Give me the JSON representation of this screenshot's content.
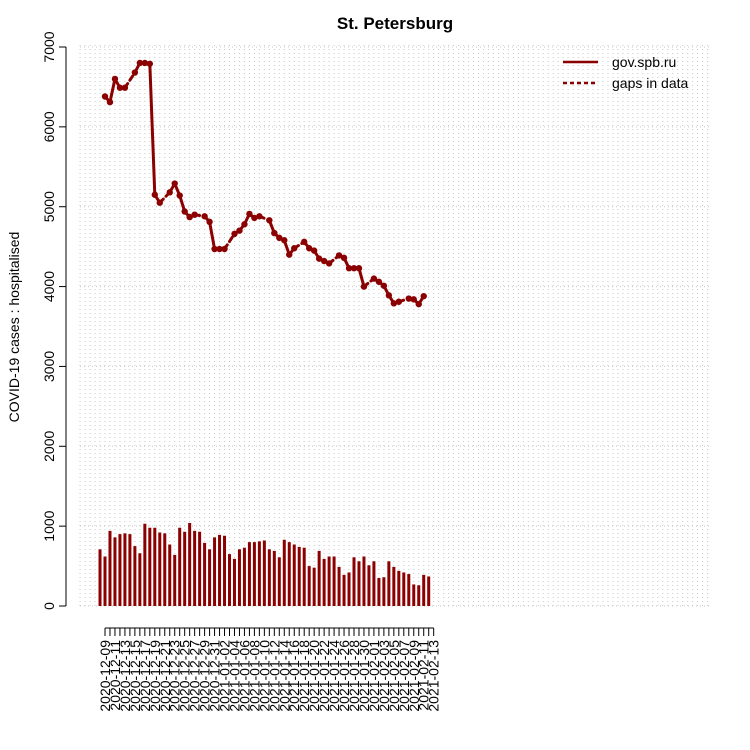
{
  "chart_data": {
    "type": "line",
    "title": "St. Petersburg",
    "xlabel": "",
    "ylabel": "COVID-19 cases : hospitalised",
    "ylim": [
      0,
      7000
    ],
    "yticks": [
      0,
      1000,
      2000,
      3000,
      4000,
      5000,
      6000,
      7000
    ],
    "grid": true,
    "legend_position": "top-right",
    "colors": {
      "series": "#8b0000",
      "grid": "#c8c8c8",
      "axis": "#000000"
    },
    "x_tick_labels": [
      "2020-12-09",
      "2020-12-11",
      "2020-12-13",
      "2020-12-15",
      "2020-12-17",
      "2020-12-19",
      "2020-12-21",
      "2020-12-23",
      "2020-12-25",
      "2020-12-27",
      "2020-12-29",
      "2020-12-31",
      "2021-01-02",
      "2021-01-04",
      "2021-01-06",
      "2021-01-08",
      "2021-01-10",
      "2021-01-12",
      "2021-01-14",
      "2021-01-16",
      "2021-01-18",
      "2021-01-20",
      "2021-01-22",
      "2021-01-24",
      "2021-01-26",
      "2021-01-28",
      "2021-01-30",
      "2021-02-01",
      "2021-02-03",
      "2021-02-05",
      "2021-02-07",
      "2021-02-09",
      "2021-02-11",
      "2021-02-13"
    ],
    "legend": [
      {
        "label": "gov.spb.ru",
        "style": "solid"
      },
      {
        "label": "gaps in data",
        "style": "dashed"
      }
    ],
    "series": [
      {
        "name": "gov.spb.ru",
        "kind": "line",
        "points": [
          [
            "2020-12-09",
            6380
          ],
          [
            "2020-12-10",
            6310
          ],
          [
            "2020-12-11",
            6600
          ],
          [
            "2020-12-12",
            6490
          ],
          [
            "2020-12-13",
            6490
          ],
          [
            "2020-12-15",
            6680
          ],
          [
            "2020-12-16",
            6800
          ],
          [
            "2020-12-17",
            6800
          ],
          [
            "2020-12-18",
            6790
          ],
          [
            "2020-12-19",
            5150
          ],
          [
            "2020-12-20",
            5050
          ],
          [
            "2020-12-22",
            5180
          ],
          [
            "2020-12-23",
            5290
          ],
          [
            "2020-12-24",
            5140
          ],
          [
            "2020-12-25",
            4940
          ],
          [
            "2020-12-26",
            4870
          ],
          [
            "2020-12-27",
            4900
          ],
          [
            "2020-12-29",
            4880
          ],
          [
            "2020-12-30",
            4810
          ],
          [
            "2020-12-31",
            4470
          ],
          [
            "2021-01-01",
            4470
          ],
          [
            "2021-01-02",
            4470
          ],
          [
            "2021-01-04",
            4660
          ],
          [
            "2021-01-05",
            4700
          ],
          [
            "2021-01-06",
            4780
          ],
          [
            "2021-01-07",
            4910
          ],
          [
            "2021-01-08",
            4860
          ],
          [
            "2021-01-09",
            4880
          ],
          [
            "2021-01-11",
            4830
          ],
          [
            "2021-01-12",
            4670
          ],
          [
            "2021-01-13",
            4610
          ],
          [
            "2021-01-14",
            4580
          ],
          [
            "2021-01-15",
            4400
          ],
          [
            "2021-01-16",
            4480
          ],
          [
            "2021-01-18",
            4560
          ],
          [
            "2021-01-19",
            4480
          ],
          [
            "2021-01-20",
            4450
          ],
          [
            "2021-01-21",
            4350
          ],
          [
            "2021-01-22",
            4320
          ],
          [
            "2021-01-23",
            4290
          ],
          [
            "2021-01-25",
            4390
          ],
          [
            "2021-01-26",
            4360
          ],
          [
            "2021-01-27",
            4230
          ],
          [
            "2021-01-28",
            4230
          ],
          [
            "2021-01-29",
            4230
          ],
          [
            "2021-01-30",
            4000
          ],
          [
            "2021-02-01",
            4100
          ],
          [
            "2021-02-02",
            4060
          ],
          [
            "2021-02-03",
            4010
          ],
          [
            "2021-02-04",
            3890
          ],
          [
            "2021-02-05",
            3790
          ],
          [
            "2021-02-06",
            3810
          ],
          [
            "2021-02-08",
            3850
          ],
          [
            "2021-02-09",
            3840
          ],
          [
            "2021-02-10",
            3780
          ],
          [
            "2021-02-11",
            3880
          ]
        ]
      },
      {
        "name": "gov.spb.ru",
        "kind": "bar",
        "points": [
          [
            "2020-12-08",
            710
          ],
          [
            "2020-12-09",
            620
          ],
          [
            "2020-12-10",
            940
          ],
          [
            "2020-12-11",
            860
          ],
          [
            "2020-12-12",
            900
          ],
          [
            "2020-12-13",
            910
          ],
          [
            "2020-12-14",
            900
          ],
          [
            "2020-12-15",
            750
          ],
          [
            "2020-12-16",
            660
          ],
          [
            "2020-12-17",
            1030
          ],
          [
            "2020-12-18",
            980
          ],
          [
            "2020-12-19",
            980
          ],
          [
            "2020-12-20",
            920
          ],
          [
            "2020-12-21",
            910
          ],
          [
            "2020-12-22",
            770
          ],
          [
            "2020-12-23",
            640
          ],
          [
            "2020-12-24",
            980
          ],
          [
            "2020-12-25",
            930
          ],
          [
            "2020-12-26",
            1040
          ],
          [
            "2020-12-27",
            940
          ],
          [
            "2020-12-28",
            930
          ],
          [
            "2020-12-29",
            790
          ],
          [
            "2020-12-30",
            710
          ],
          [
            "2020-12-31",
            860
          ],
          [
            "2021-01-01",
            890
          ],
          [
            "2021-01-02",
            880
          ],
          [
            "2021-01-03",
            650
          ],
          [
            "2021-01-04",
            590
          ],
          [
            "2021-01-05",
            710
          ],
          [
            "2021-01-06",
            730
          ],
          [
            "2021-01-07",
            800
          ],
          [
            "2021-01-08",
            800
          ],
          [
            "2021-01-09",
            810
          ],
          [
            "2021-01-10",
            820
          ],
          [
            "2021-01-11",
            710
          ],
          [
            "2021-01-12",
            690
          ],
          [
            "2021-01-13",
            610
          ],
          [
            "2021-01-14",
            830
          ],
          [
            "2021-01-15",
            800
          ],
          [
            "2021-01-16",
            770
          ],
          [
            "2021-01-17",
            740
          ],
          [
            "2021-01-18",
            730
          ],
          [
            "2021-01-19",
            500
          ],
          [
            "2021-01-20",
            480
          ],
          [
            "2021-01-21",
            690
          ],
          [
            "2021-01-22",
            590
          ],
          [
            "2021-01-23",
            620
          ],
          [
            "2021-01-24",
            620
          ],
          [
            "2021-01-25",
            490
          ],
          [
            "2021-01-26",
            390
          ],
          [
            "2021-01-27",
            420
          ],
          [
            "2021-01-28",
            610
          ],
          [
            "2021-01-29",
            560
          ],
          [
            "2021-01-30",
            620
          ],
          [
            "2021-01-31",
            510
          ],
          [
            "2021-02-01",
            560
          ],
          [
            "2021-02-02",
            350
          ],
          [
            "2021-02-03",
            360
          ],
          [
            "2021-02-04",
            560
          ],
          [
            "2021-02-05",
            490
          ],
          [
            "2021-02-06",
            440
          ],
          [
            "2021-02-07",
            420
          ],
          [
            "2021-02-08",
            400
          ],
          [
            "2021-02-09",
            270
          ],
          [
            "2021-02-10",
            260
          ],
          [
            "2021-02-11",
            390
          ],
          [
            "2021-02-12",
            370
          ]
        ]
      }
    ]
  }
}
